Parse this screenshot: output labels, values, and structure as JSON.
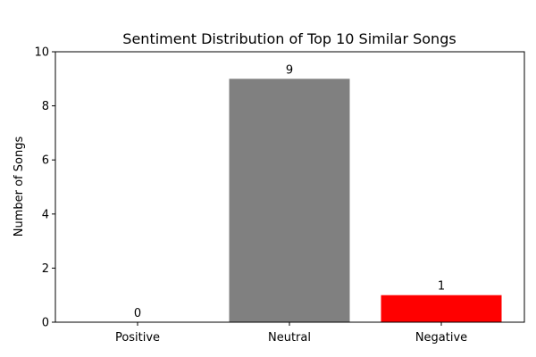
{
  "chart_data": {
    "type": "bar",
    "title": "Sentiment Distribution of Top 10 Similar Songs",
    "xlabel": "",
    "ylabel": "Number of Songs",
    "categories": [
      "Positive",
      "Neutral",
      "Negative"
    ],
    "values": [
      0,
      9,
      1
    ],
    "colors": [
      "#008000",
      "#808080",
      "#ff0000"
    ],
    "ylim": [
      0,
      10
    ],
    "yticks": [
      0,
      2,
      4,
      6,
      8,
      10
    ],
    "data_labels": [
      "0",
      "9",
      "1"
    ],
    "grid": false,
    "legend": "none"
  }
}
